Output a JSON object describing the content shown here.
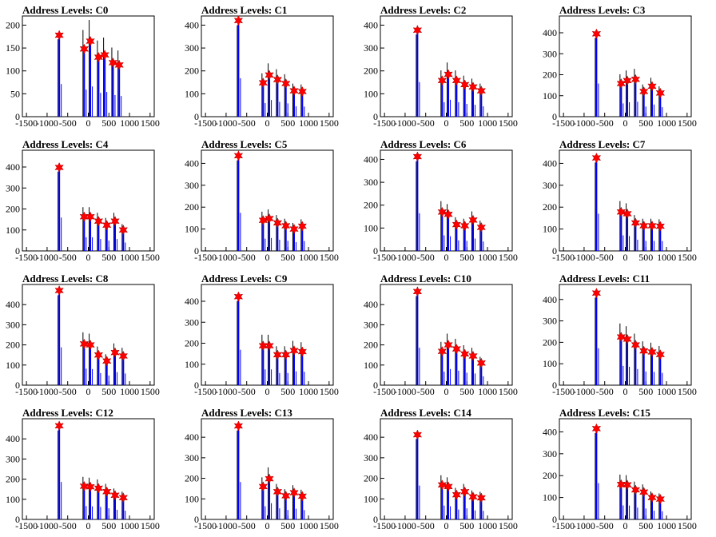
{
  "chart_data": [
    {
      "type": "bar",
      "title": "Address Levels: C0",
      "ylim": [
        0,
        220
      ],
      "yticks": [
        0,
        50,
        100,
        150,
        200
      ],
      "peaks": [
        {
          "x": -705,
          "y": 178
        },
        {
          "x": -100,
          "y": 148
        },
        {
          "x": 50,
          "y": 165
        },
        {
          "x": 250,
          "y": 130
        },
        {
          "x": 400,
          "y": 135
        },
        {
          "x": 600,
          "y": 118
        },
        {
          "x": 750,
          "y": 113
        }
      ]
    },
    {
      "type": "bar",
      "title": "Address Levels: C1",
      "ylim": [
        0,
        440
      ],
      "yticks": [
        0,
        100,
        200,
        300,
        400
      ],
      "peaks": [
        {
          "x": -700,
          "y": 420
        },
        {
          "x": -100,
          "y": 148
        },
        {
          "x": 50,
          "y": 182
        },
        {
          "x": 250,
          "y": 162
        },
        {
          "x": 450,
          "y": 145
        },
        {
          "x": 650,
          "y": 113
        },
        {
          "x": 850,
          "y": 110
        }
      ]
    },
    {
      "type": "bar",
      "title": "Address Levels: C2",
      "ylim": [
        0,
        440
      ],
      "yticks": [
        0,
        100,
        200,
        300,
        400
      ],
      "peaks": [
        {
          "x": -700,
          "y": 378
        },
        {
          "x": -100,
          "y": 158
        },
        {
          "x": 50,
          "y": 185
        },
        {
          "x": 250,
          "y": 158
        },
        {
          "x": 450,
          "y": 140
        },
        {
          "x": 650,
          "y": 130
        },
        {
          "x": 850,
          "y": 113
        }
      ]
    },
    {
      "type": "bar",
      "title": "Address Levels: C3",
      "ylim": [
        0,
        480
      ],
      "yticks": [
        0,
        100,
        200,
        300,
        400
      ],
      "peaks": [
        {
          "x": -700,
          "y": 395
        },
        {
          "x": -100,
          "y": 158
        },
        {
          "x": 50,
          "y": 172
        },
        {
          "x": 250,
          "y": 178
        },
        {
          "x": 450,
          "y": 120
        },
        {
          "x": 650,
          "y": 145
        },
        {
          "x": 850,
          "y": 113
        }
      ]
    },
    {
      "type": "bar",
      "title": "Address Levels: C4",
      "ylim": [
        0,
        480
      ],
      "yticks": [
        0,
        100,
        200,
        300,
        400
      ],
      "peaks": [
        {
          "x": -705,
          "y": 398
        },
        {
          "x": -100,
          "y": 163
        },
        {
          "x": 50,
          "y": 163
        },
        {
          "x": 250,
          "y": 142
        },
        {
          "x": 450,
          "y": 123
        },
        {
          "x": 650,
          "y": 142
        },
        {
          "x": 850,
          "y": 100
        }
      ]
    },
    {
      "type": "bar",
      "title": "Address Levels: C5",
      "ylim": [
        0,
        460
      ],
      "yticks": [
        0,
        100,
        200,
        300,
        400
      ],
      "peaks": [
        {
          "x": -700,
          "y": 435
        },
        {
          "x": -100,
          "y": 140
        },
        {
          "x": 50,
          "y": 148
        },
        {
          "x": 250,
          "y": 128
        },
        {
          "x": 450,
          "y": 115
        },
        {
          "x": 650,
          "y": 100
        },
        {
          "x": 850,
          "y": 113
        }
      ]
    },
    {
      "type": "bar",
      "title": "Address Levels: C6",
      "ylim": [
        0,
        440
      ],
      "yticks": [
        0,
        100,
        200,
        300,
        400
      ],
      "peaks": [
        {
          "x": -700,
          "y": 412
        },
        {
          "x": -100,
          "y": 170
        },
        {
          "x": 50,
          "y": 160
        },
        {
          "x": 250,
          "y": 115
        },
        {
          "x": 450,
          "y": 110
        },
        {
          "x": 650,
          "y": 135
        },
        {
          "x": 850,
          "y": 103
        }
      ]
    },
    {
      "type": "bar",
      "title": "Address Levels: C7",
      "ylim": [
        0,
        460
      ],
      "yticks": [
        0,
        100,
        200,
        300,
        400
      ],
      "peaks": [
        {
          "x": -700,
          "y": 425
        },
        {
          "x": -100,
          "y": 178
        },
        {
          "x": 50,
          "y": 170
        },
        {
          "x": 250,
          "y": 128
        },
        {
          "x": 450,
          "y": 115
        },
        {
          "x": 650,
          "y": 115
        },
        {
          "x": 850,
          "y": 113
        }
      ]
    },
    {
      "type": "bar",
      "title": "Address Levels: C8",
      "ylim": [
        0,
        500
      ],
      "yticks": [
        0,
        100,
        200,
        300,
        400
      ],
      "peaks": [
        {
          "x": -705,
          "y": 470
        },
        {
          "x": -100,
          "y": 205
        },
        {
          "x": 50,
          "y": 200
        },
        {
          "x": 250,
          "y": 150
        },
        {
          "x": 450,
          "y": 120
        },
        {
          "x": 650,
          "y": 162
        },
        {
          "x": 850,
          "y": 145
        }
      ]
    },
    {
      "type": "bar",
      "title": "Address Levels: C9",
      "ylim": [
        0,
        480
      ],
      "yticks": [
        0,
        100,
        200,
        300,
        400
      ],
      "peaks": [
        {
          "x": -700,
          "y": 422
        },
        {
          "x": -100,
          "y": 188
        },
        {
          "x": 50,
          "y": 188
        },
        {
          "x": 250,
          "y": 145
        },
        {
          "x": 450,
          "y": 145
        },
        {
          "x": 650,
          "y": 165
        },
        {
          "x": 850,
          "y": 160
        }
      ]
    },
    {
      "type": "bar",
      "title": "Address Levels: C10",
      "ylim": [
        0,
        500
      ],
      "yticks": [
        0,
        100,
        200,
        300,
        400
      ],
      "peaks": [
        {
          "x": -700,
          "y": 465
        },
        {
          "x": -100,
          "y": 168
        },
        {
          "x": 50,
          "y": 200
        },
        {
          "x": 250,
          "y": 180
        },
        {
          "x": 450,
          "y": 155
        },
        {
          "x": 650,
          "y": 145
        },
        {
          "x": 850,
          "y": 110
        }
      ]
    },
    {
      "type": "bar",
      "title": "Address Levels: C11",
      "ylim": [
        0,
        470
      ],
      "yticks": [
        0,
        100,
        200,
        300,
        400
      ],
      "peaks": [
        {
          "x": -700,
          "y": 430
        },
        {
          "x": -100,
          "y": 225
        },
        {
          "x": 50,
          "y": 215
        },
        {
          "x": 250,
          "y": 188
        },
        {
          "x": 450,
          "y": 160
        },
        {
          "x": 650,
          "y": 155
        },
        {
          "x": 850,
          "y": 143
        }
      ]
    },
    {
      "type": "bar",
      "title": "Address Levels: C12",
      "ylim": [
        0,
        500
      ],
      "yticks": [
        0,
        100,
        200,
        300,
        400
      ],
      "peaks": [
        {
          "x": -705,
          "y": 465
        },
        {
          "x": -100,
          "y": 165
        },
        {
          "x": 50,
          "y": 162
        },
        {
          "x": 250,
          "y": 155
        },
        {
          "x": 450,
          "y": 138
        },
        {
          "x": 650,
          "y": 120
        },
        {
          "x": 850,
          "y": 108
        }
      ]
    },
    {
      "type": "bar",
      "title": "Address Levels: C13",
      "ylim": [
        0,
        490
      ],
      "yticks": [
        0,
        100,
        200,
        300,
        400
      ],
      "peaks": [
        {
          "x": -700,
          "y": 455
        },
        {
          "x": -100,
          "y": 160
        },
        {
          "x": 50,
          "y": 198
        },
        {
          "x": 250,
          "y": 135
        },
        {
          "x": 450,
          "y": 115
        },
        {
          "x": 650,
          "y": 130
        },
        {
          "x": 850,
          "y": 113
        }
      ]
    },
    {
      "type": "bar",
      "title": "Address Levels: C14",
      "ylim": [
        0,
        490
      ],
      "yticks": [
        0,
        100,
        200,
        300,
        400
      ],
      "peaks": [
        {
          "x": -700,
          "y": 412
        },
        {
          "x": -100,
          "y": 168
        },
        {
          "x": 50,
          "y": 160
        },
        {
          "x": 250,
          "y": 120
        },
        {
          "x": 450,
          "y": 135
        },
        {
          "x": 650,
          "y": 110
        },
        {
          "x": 850,
          "y": 105
        }
      ]
    },
    {
      "type": "bar",
      "title": "Address Levels: C15",
      "ylim": [
        0,
        460
      ],
      "yticks": [
        0,
        100,
        200,
        300,
        400
      ],
      "peaks": [
        {
          "x": -700,
          "y": 415
        },
        {
          "x": -100,
          "y": 160
        },
        {
          "x": 50,
          "y": 158
        },
        {
          "x": 250,
          "y": 135
        },
        {
          "x": 450,
          "y": 125
        },
        {
          "x": 650,
          "y": 100
        },
        {
          "x": 850,
          "y": 93
        }
      ]
    }
  ],
  "shared": {
    "xlim": [
      -1600,
      1600
    ],
    "xticks": [
      -1500,
      -1000,
      -500,
      0,
      500,
      1000,
      1500
    ],
    "xtick_labels": [
      "-1500",
      "-1000",
      "-500",
      "0",
      "500",
      "1000",
      "1500"
    ],
    "colors": {
      "bar": "#0000ff",
      "secondary_bar": "#000000",
      "marker": "#ff0000",
      "axis": "#000000"
    }
  }
}
